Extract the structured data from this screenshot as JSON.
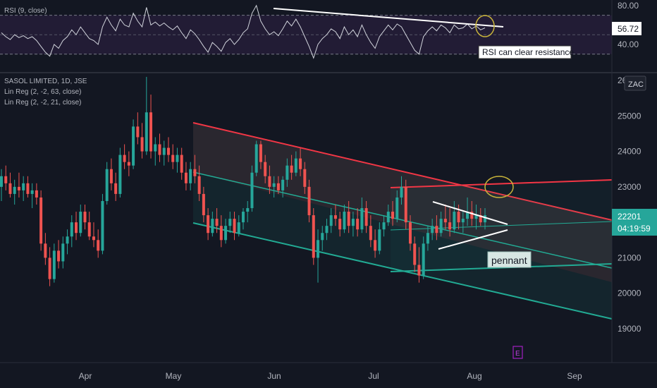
{
  "rsi_pane": {
    "legend": "RSI (9, close)",
    "y_ticks": [
      "80.00",
      "40.00"
    ],
    "current_value": "56.72",
    "annotation": "RSI can clear resistance",
    "colors": {
      "line": "#d1d4dc",
      "band": "#2a1f3d",
      "trendline": "#ffffff",
      "highlight": "#c8b43a"
    }
  },
  "main_pane": {
    "legend": [
      "SASOL LIMITED, 1D, JSE",
      "Lin Reg (2, -2, 63, close)",
      "Lin Reg (2, -2, 21, close)"
    ],
    "y_ticks": [
      "26000",
      "25000",
      "24000",
      "23000",
      "22000",
      "21000",
      "20000",
      "19000"
    ],
    "scale_button": "ZAC",
    "price_tag": "22201",
    "countdown": "04:19:59",
    "pennant_label": "pennant",
    "event_marker": "E",
    "colors": {
      "up": "#26a69a",
      "down": "#ef5350",
      "upper_channel": "#f23645",
      "lower_channel": "#22ab94"
    }
  },
  "x_axis": {
    "labels": [
      "Apr",
      "May",
      "Jun",
      "Jul",
      "Aug",
      "Sep"
    ]
  },
  "chart_data": {
    "type": "candlestick",
    "title": "SASOL LIMITED, 1D, JSE",
    "x": {
      "labels": [
        "Apr",
        "May",
        "Jun",
        "Jul",
        "Aug",
        "Sep"
      ]
    },
    "ylim": [
      18300,
      26300
    ],
    "last_price": 22201,
    "ohlc": [
      {
        "o": 23000,
        "h": 23500,
        "l": 22600,
        "c": 23300
      },
      {
        "o": 23300,
        "h": 23600,
        "l": 22900,
        "c": 23100
      },
      {
        "o": 23100,
        "h": 23400,
        "l": 22700,
        "c": 22800
      },
      {
        "o": 22800,
        "h": 23200,
        "l": 22500,
        "c": 23000
      },
      {
        "o": 23000,
        "h": 23400,
        "l": 22700,
        "c": 22900
      },
      {
        "o": 22900,
        "h": 23300,
        "l": 22600,
        "c": 23100
      },
      {
        "o": 23100,
        "h": 23300,
        "l": 22700,
        "c": 22800
      },
      {
        "o": 22800,
        "h": 23100,
        "l": 22400,
        "c": 22900
      },
      {
        "o": 22900,
        "h": 23100,
        "l": 22500,
        "c": 22700
      },
      {
        "o": 22700,
        "h": 22900,
        "l": 21200,
        "c": 21400
      },
      {
        "o": 21400,
        "h": 21700,
        "l": 20800,
        "c": 21000
      },
      {
        "o": 21000,
        "h": 21300,
        "l": 20200,
        "c": 20400
      },
      {
        "o": 20400,
        "h": 21400,
        "l": 20300,
        "c": 21200
      },
      {
        "o": 21200,
        "h": 21500,
        "l": 20700,
        "c": 20900
      },
      {
        "o": 20900,
        "h": 21600,
        "l": 20700,
        "c": 21400
      },
      {
        "o": 21400,
        "h": 21800,
        "l": 21100,
        "c": 21600
      },
      {
        "o": 21600,
        "h": 22200,
        "l": 21300,
        "c": 22000
      },
      {
        "o": 22000,
        "h": 22300,
        "l": 21500,
        "c": 21700
      },
      {
        "o": 21700,
        "h": 22500,
        "l": 21600,
        "c": 22300
      },
      {
        "o": 22300,
        "h": 22500,
        "l": 21800,
        "c": 22000
      },
      {
        "o": 22000,
        "h": 22300,
        "l": 21500,
        "c": 21600
      },
      {
        "o": 21600,
        "h": 22000,
        "l": 21300,
        "c": 21500
      },
      {
        "o": 21500,
        "h": 21800,
        "l": 21000,
        "c": 21200
      },
      {
        "o": 21200,
        "h": 22800,
        "l": 21100,
        "c": 22600
      },
      {
        "o": 22600,
        "h": 23700,
        "l": 22500,
        "c": 23500
      },
      {
        "o": 23500,
        "h": 23800,
        "l": 22900,
        "c": 23100
      },
      {
        "o": 23100,
        "h": 23400,
        "l": 22600,
        "c": 22800
      },
      {
        "o": 22800,
        "h": 24100,
        "l": 22700,
        "c": 23900
      },
      {
        "o": 23900,
        "h": 24200,
        "l": 23500,
        "c": 23700
      },
      {
        "o": 23700,
        "h": 24000,
        "l": 23300,
        "c": 23600
      },
      {
        "o": 23600,
        "h": 24900,
        "l": 23500,
        "c": 24700
      },
      {
        "o": 24700,
        "h": 25100,
        "l": 24200,
        "c": 24400
      },
      {
        "o": 24400,
        "h": 24800,
        "l": 23800,
        "c": 24000
      },
      {
        "o": 24000,
        "h": 26100,
        "l": 23900,
        "c": 25100
      },
      {
        "o": 25100,
        "h": 25600,
        "l": 23800,
        "c": 24000
      },
      {
        "o": 24000,
        "h": 24400,
        "l": 23600,
        "c": 24200
      },
      {
        "o": 24200,
        "h": 24500,
        "l": 23700,
        "c": 23900
      },
      {
        "o": 23900,
        "h": 24300,
        "l": 23600,
        "c": 24100
      },
      {
        "o": 24100,
        "h": 24400,
        "l": 23700,
        "c": 23900
      },
      {
        "o": 23900,
        "h": 24200,
        "l": 23500,
        "c": 23700
      },
      {
        "o": 23700,
        "h": 24100,
        "l": 23400,
        "c": 23900
      },
      {
        "o": 23900,
        "h": 24100,
        "l": 23200,
        "c": 23400
      },
      {
        "o": 23400,
        "h": 23700,
        "l": 22900,
        "c": 23100
      },
      {
        "o": 23100,
        "h": 23700,
        "l": 22900,
        "c": 23500
      },
      {
        "o": 23500,
        "h": 23900,
        "l": 23100,
        "c": 23300
      },
      {
        "o": 23300,
        "h": 23600,
        "l": 22600,
        "c": 22800
      },
      {
        "o": 22800,
        "h": 23000,
        "l": 22000,
        "c": 22200
      },
      {
        "o": 22200,
        "h": 22400,
        "l": 21500,
        "c": 21700
      },
      {
        "o": 21700,
        "h": 22300,
        "l": 21600,
        "c": 22100
      },
      {
        "o": 22100,
        "h": 22400,
        "l": 21700,
        "c": 21900
      },
      {
        "o": 21900,
        "h": 22200,
        "l": 21300,
        "c": 21500
      },
      {
        "o": 21500,
        "h": 22100,
        "l": 21400,
        "c": 21900
      },
      {
        "o": 21900,
        "h": 22300,
        "l": 21700,
        "c": 22100
      },
      {
        "o": 22100,
        "h": 22300,
        "l": 21500,
        "c": 21700
      },
      {
        "o": 21700,
        "h": 22200,
        "l": 21600,
        "c": 22000
      },
      {
        "o": 22000,
        "h": 22400,
        "l": 21800,
        "c": 22300
      },
      {
        "o": 22300,
        "h": 22600,
        "l": 22000,
        "c": 22400
      },
      {
        "o": 22400,
        "h": 23600,
        "l": 22300,
        "c": 23400
      },
      {
        "o": 23400,
        "h": 24300,
        "l": 23300,
        "c": 24200
      },
      {
        "o": 24200,
        "h": 24300,
        "l": 23500,
        "c": 23700
      },
      {
        "o": 23700,
        "h": 23900,
        "l": 23100,
        "c": 23300
      },
      {
        "o": 23300,
        "h": 23600,
        "l": 22800,
        "c": 23000
      },
      {
        "o": 23000,
        "h": 23300,
        "l": 22700,
        "c": 23100
      },
      {
        "o": 23100,
        "h": 23300,
        "l": 22800,
        "c": 22900
      },
      {
        "o": 22900,
        "h": 23300,
        "l": 22700,
        "c": 23200
      },
      {
        "o": 23200,
        "h": 23800,
        "l": 23000,
        "c": 23600
      },
      {
        "o": 23600,
        "h": 23900,
        "l": 23200,
        "c": 23400
      },
      {
        "o": 23400,
        "h": 24000,
        "l": 23300,
        "c": 23800
      },
      {
        "o": 23800,
        "h": 24100,
        "l": 23300,
        "c": 23500
      },
      {
        "o": 23500,
        "h": 23700,
        "l": 22800,
        "c": 23000
      },
      {
        "o": 23000,
        "h": 23200,
        "l": 22000,
        "c": 22200
      },
      {
        "o": 22200,
        "h": 22400,
        "l": 20800,
        "c": 21000
      },
      {
        "o": 21000,
        "h": 21800,
        "l": 20300,
        "c": 21500
      },
      {
        "o": 21500,
        "h": 21900,
        "l": 21200,
        "c": 21700
      },
      {
        "o": 21700,
        "h": 22100,
        "l": 21500,
        "c": 21900
      },
      {
        "o": 21900,
        "h": 22400,
        "l": 21700,
        "c": 22200
      },
      {
        "o": 22200,
        "h": 22500,
        "l": 21900,
        "c": 22100
      },
      {
        "o": 22100,
        "h": 22300,
        "l": 21600,
        "c": 21800
      },
      {
        "o": 21800,
        "h": 22500,
        "l": 21700,
        "c": 22300
      },
      {
        "o": 22300,
        "h": 22600,
        "l": 21700,
        "c": 21900
      },
      {
        "o": 21900,
        "h": 22300,
        "l": 21600,
        "c": 22100
      },
      {
        "o": 22100,
        "h": 22400,
        "l": 21600,
        "c": 21800
      },
      {
        "o": 21800,
        "h": 22700,
        "l": 21700,
        "c": 22400
      },
      {
        "o": 22400,
        "h": 22600,
        "l": 21700,
        "c": 21900
      },
      {
        "o": 21900,
        "h": 22200,
        "l": 21300,
        "c": 21500
      },
      {
        "o": 21500,
        "h": 21800,
        "l": 21000,
        "c": 21200
      },
      {
        "o": 21200,
        "h": 22000,
        "l": 21100,
        "c": 21800
      },
      {
        "o": 21800,
        "h": 22200,
        "l": 21600,
        "c": 22000
      },
      {
        "o": 22000,
        "h": 22500,
        "l": 21900,
        "c": 22300
      },
      {
        "o": 22300,
        "h": 22600,
        "l": 21900,
        "c": 22100
      },
      {
        "o": 22100,
        "h": 22900,
        "l": 22000,
        "c": 22700
      },
      {
        "o": 22700,
        "h": 23300,
        "l": 22500,
        "c": 23000
      },
      {
        "o": 23000,
        "h": 23200,
        "l": 21800,
        "c": 22000
      },
      {
        "o": 22000,
        "h": 22200,
        "l": 21200,
        "c": 21400
      },
      {
        "o": 21400,
        "h": 21600,
        "l": 20600,
        "c": 20800
      },
      {
        "o": 20800,
        "h": 21300,
        "l": 20300,
        "c": 20500
      },
      {
        "o": 20500,
        "h": 21600,
        "l": 20400,
        "c": 21400
      },
      {
        "o": 21400,
        "h": 21900,
        "l": 21200,
        "c": 21700
      },
      {
        "o": 21700,
        "h": 22100,
        "l": 21500,
        "c": 21900
      },
      {
        "o": 21900,
        "h": 22200,
        "l": 21500,
        "c": 21700
      },
      {
        "o": 21700,
        "h": 22300,
        "l": 21600,
        "c": 22100
      },
      {
        "o": 22100,
        "h": 22500,
        "l": 21800,
        "c": 22000
      },
      {
        "o": 22000,
        "h": 22400,
        "l": 21600,
        "c": 21800
      },
      {
        "o": 21800,
        "h": 22600,
        "l": 21700,
        "c": 22300
      },
      {
        "o": 22300,
        "h": 22500,
        "l": 21800,
        "c": 22000
      },
      {
        "o": 22000,
        "h": 22300,
        "l": 21700,
        "c": 22100
      },
      {
        "o": 22100,
        "h": 22700,
        "l": 21900,
        "c": 22300
      },
      {
        "o": 22300,
        "h": 22600,
        "l": 21900,
        "c": 22100
      },
      {
        "o": 22100,
        "h": 22500,
        "l": 21800,
        "c": 22200
      },
      {
        "o": 22200,
        "h": 22400,
        "l": 21900,
        "c": 22000
      },
      {
        "o": 22000,
        "h": 22400,
        "l": 21800,
        "c": 22201
      }
    ],
    "rsi": {
      "name": "RSI (9, close)",
      "ylim": [
        20,
        90
      ],
      "levels": [
        70,
        50,
        30
      ],
      "values": [
        52,
        48,
        45,
        50,
        47,
        49,
        46,
        48,
        44,
        38,
        32,
        28,
        40,
        36,
        44,
        48,
        55,
        50,
        58,
        52,
        46,
        44,
        40,
        58,
        68,
        60,
        54,
        66,
        60,
        58,
        72,
        64,
        58,
        78,
        60,
        63,
        59,
        62,
        58,
        55,
        59,
        52,
        46,
        55,
        51,
        45,
        38,
        32,
        42,
        38,
        33,
        42,
        46,
        40,
        45,
        52,
        56,
        72,
        80,
        64,
        56,
        50,
        53,
        49,
        56,
        64,
        59,
        66,
        58,
        48,
        38,
        26,
        40,
        46,
        50,
        56,
        53,
        46,
        58,
        50,
        55,
        48,
        60,
        50,
        42,
        36,
        48,
        54,
        60,
        55,
        61,
        58,
        50,
        42,
        34,
        30,
        48,
        54,
        58,
        54,
        60,
        57,
        52,
        60,
        56,
        57,
        61,
        56,
        59,
        55,
        57
      ]
    }
  }
}
